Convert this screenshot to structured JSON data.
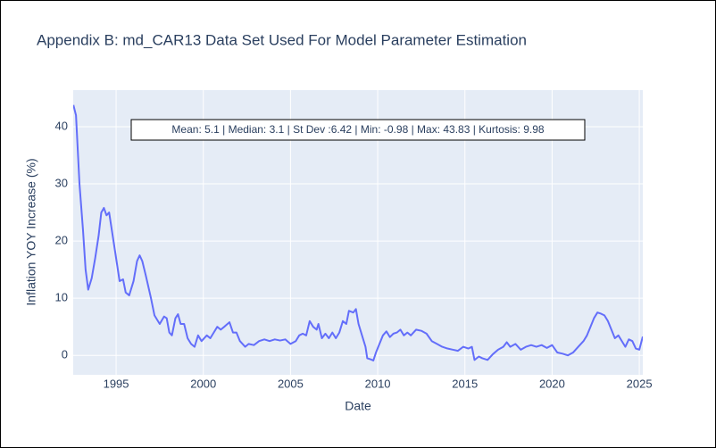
{
  "chart_data": {
    "type": "line",
    "title": "Appendix B: md_CAR13 Data Set Used For Model Parameter Estimation",
    "x_label": "Date",
    "y_label": "Inflation YOY Increase (%)",
    "annotation": "Mean: 5.1 | Median: 3.1 | St Dev :6.42 | Min: -0.98 | Max: 43.83 | Kurtosis: 9.98",
    "color": "#636efa",
    "grid": true,
    "xlim": [
      1992.54,
      2025.2
    ],
    "xticks": [
      1995,
      2000,
      2005,
      2010,
      2015,
      2020,
      2025
    ],
    "ylim": [
      -3.4,
      46.4
    ],
    "yticks": [
      0,
      10,
      20,
      30,
      40
    ],
    "x": [
      1992.55,
      1992.7,
      1992.9,
      1993.1,
      1993.25,
      1993.4,
      1993.6,
      1993.8,
      1994.0,
      1994.15,
      1994.3,
      1994.45,
      1994.6,
      1994.8,
      1995.0,
      1995.2,
      1995.4,
      1995.55,
      1995.75,
      1996.0,
      1996.2,
      1996.35,
      1996.5,
      1996.7,
      1997.0,
      1997.2,
      1997.5,
      1997.75,
      1997.9,
      1998.05,
      1998.2,
      1998.4,
      1998.55,
      1998.7,
      1998.9,
      1999.1,
      1999.3,
      1999.5,
      1999.7,
      1999.9,
      2000.2,
      2000.4,
      2000.6,
      2000.8,
      2001.0,
      2001.2,
      2001.5,
      2001.7,
      2001.9,
      2002.1,
      2002.4,
      2002.6,
      2002.9,
      2003.2,
      2003.5,
      2003.8,
      2004.1,
      2004.4,
      2004.7,
      2005.0,
      2005.3,
      2005.5,
      2005.7,
      2005.9,
      2006.1,
      2006.3,
      2006.5,
      2006.6,
      2006.8,
      2007.0,
      2007.2,
      2007.4,
      2007.6,
      2007.8,
      2008.0,
      2008.2,
      2008.35,
      2008.6,
      2008.75,
      2008.9,
      2009.1,
      2009.3,
      2009.4,
      2009.6,
      2009.75,
      2009.9,
      2010.1,
      2010.3,
      2010.5,
      2010.7,
      2010.9,
      2011.1,
      2011.3,
      2011.5,
      2011.7,
      2011.9,
      2012.2,
      2012.5,
      2012.8,
      2013.1,
      2013.4,
      2013.7,
      2014.0,
      2014.3,
      2014.6,
      2014.9,
      2015.2,
      2015.4,
      2015.55,
      2015.8,
      2016.0,
      2016.3,
      2016.6,
      2016.9,
      2017.2,
      2017.4,
      2017.6,
      2017.9,
      2018.2,
      2018.5,
      2018.8,
      2019.1,
      2019.4,
      2019.7,
      2020.0,
      2020.3,
      2020.6,
      2020.9,
      2021.2,
      2021.5,
      2021.8,
      2022.0,
      2022.2,
      2022.4,
      2022.6,
      2022.8,
      2023.0,
      2023.2,
      2023.4,
      2023.6,
      2023.8,
      2024.0,
      2024.2,
      2024.4,
      2024.6,
      2024.8,
      2025.0,
      2025.2
    ],
    "values": [
      43.8,
      42,
      30,
      22,
      15,
      11.5,
      13.5,
      17,
      21,
      25,
      25.8,
      24.5,
      25,
      21,
      17,
      13,
      13.3,
      11,
      10.5,
      13,
      16.5,
      17.5,
      16.5,
      14,
      10,
      7,
      5.5,
      6.8,
      6.5,
      4,
      3.5,
      6.5,
      7.2,
      5.5,
      5.5,
      3,
      2,
      1.5,
      3.5,
      2.5,
      3.5,
      3,
      4,
      5,
      4.5,
      5,
      5.8,
      4,
      4,
      2.5,
      1.5,
      2,
      1.8,
      2.5,
      2.8,
      2.5,
      2.8,
      2.6,
      2.8,
      2,
      2.5,
      3.5,
      3.8,
      3.5,
      6,
      5,
      4.5,
      5.5,
      3,
      3.8,
      3,
      4,
      3,
      4,
      6,
      5.5,
      7.8,
      7.5,
      8.1,
      5.5,
      3.5,
      1.5,
      -0.5,
      -0.7,
      -0.9,
      0.5,
      2,
      3.5,
      4.2,
      3.2,
      3.8,
      4,
      4.5,
      3.5,
      4,
      3.5,
      4.5,
      4.3,
      3.8,
      2.5,
      2,
      1.5,
      1.2,
      1,
      0.8,
      1.5,
      1.2,
      1.5,
      -0.8,
      -0.2,
      -0.5,
      -0.8,
      0.2,
      1,
      1.5,
      2.3,
      1.5,
      2,
      1,
      1.5,
      1.8,
      1.5,
      1.8,
      1.3,
      1.8,
      0.5,
      0.3,
      0,
      0.5,
      1.5,
      2.5,
      3.5,
      5,
      6.5,
      7.5,
      7.3,
      7,
      6,
      4.5,
      3,
      3.5,
      2.5,
      1.5,
      2.8,
      2.5,
      1.2,
      1,
      3.3
    ]
  }
}
